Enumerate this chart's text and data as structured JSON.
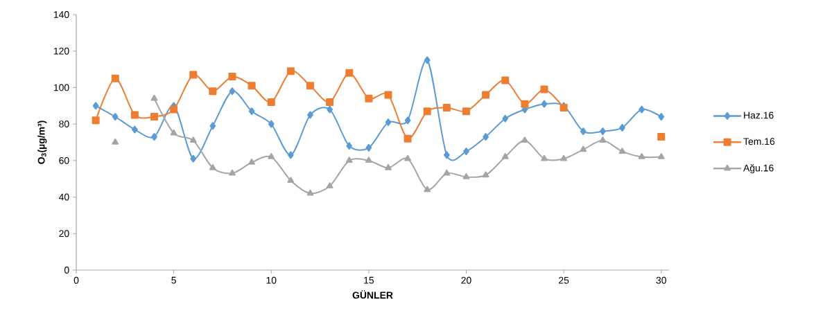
{
  "chart_data": {
    "type": "line",
    "xlabel": "GÜNLER",
    "ylabel": "O$_{3}$(µg/m³)",
    "x": [
      1,
      2,
      3,
      4,
      5,
      6,
      7,
      8,
      9,
      10,
      11,
      12,
      13,
      14,
      15,
      16,
      17,
      18,
      19,
      20,
      21,
      22,
      23,
      24,
      25,
      26,
      27,
      28,
      29,
      30
    ],
    "series": [
      {
        "name": "Haz.16",
        "color": "#5b9bd5",
        "marker": "diamond",
        "values": [
          90,
          84,
          77,
          73,
          90,
          61,
          79,
          98,
          87,
          80,
          63,
          85,
          88,
          68,
          67,
          81,
          82,
          115,
          63,
          65,
          73,
          83,
          88,
          91,
          90,
          76,
          76,
          78,
          88,
          84
        ]
      },
      {
        "name": "Tem.16",
        "color": "#ed7d31",
        "marker": "square",
        "values": [
          82,
          105,
          85,
          84,
          88,
          107,
          98,
          106,
          101,
          92,
          109,
          101,
          92,
          108,
          94,
          96,
          72,
          87,
          89,
          87,
          96,
          104,
          91,
          99,
          89,
          null,
          null,
          null,
          null,
          73
        ]
      },
      {
        "name": "Ağu.16",
        "color": "#a5a5a5",
        "marker": "triangle",
        "values": [
          null,
          70,
          null,
          94,
          75,
          71,
          56,
          53,
          59,
          62,
          49,
          42,
          46,
          60,
          60,
          56,
          61,
          44,
          53,
          51,
          52,
          62,
          71,
          61,
          61,
          66,
          71,
          65,
          62,
          62
        ]
      }
    ],
    "xlim": [
      0,
      30.4
    ],
    "xticks": [
      0,
      5,
      10,
      15,
      20,
      25,
      30
    ],
    "ylim": [
      0,
      140
    ],
    "yticks": [
      0,
      20,
      40,
      60,
      80,
      100,
      120,
      140
    ],
    "grid": false,
    "legend": "right"
  }
}
